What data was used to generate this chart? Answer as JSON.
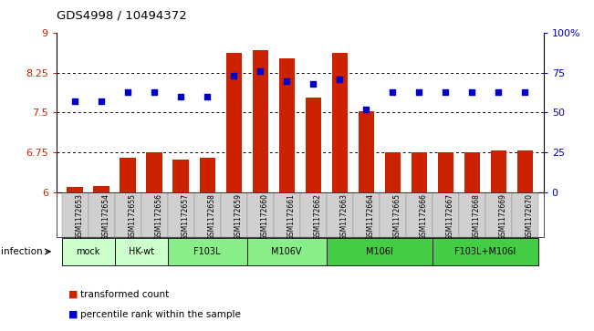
{
  "title": "GDS4998 / 10494372",
  "samples": [
    "GSM1172653",
    "GSM1172654",
    "GSM1172655",
    "GSM1172656",
    "GSM1172657",
    "GSM1172658",
    "GSM1172659",
    "GSM1172660",
    "GSM1172661",
    "GSM1172662",
    "GSM1172663",
    "GSM1172664",
    "GSM1172665",
    "GSM1172666",
    "GSM1172667",
    "GSM1172668",
    "GSM1172669",
    "GSM1172670"
  ],
  "bar_values": [
    6.1,
    6.12,
    6.65,
    6.75,
    6.62,
    6.65,
    8.63,
    8.68,
    8.52,
    7.78,
    8.62,
    7.52,
    6.75,
    6.75,
    6.75,
    6.75,
    6.78,
    6.78
  ],
  "dot_values": [
    57,
    57,
    63,
    63,
    60,
    60,
    73,
    76,
    70,
    68,
    71,
    52,
    63,
    63,
    63,
    63,
    63,
    63
  ],
  "ylim_left": [
    6,
    9
  ],
  "ylim_right": [
    0,
    100
  ],
  "yticks_left": [
    6,
    6.75,
    7.5,
    8.25,
    9
  ],
  "yticks_right": [
    0,
    25,
    50,
    75,
    100
  ],
  "ytick_labels_right": [
    "0",
    "25",
    "50",
    "75",
    "100%"
  ],
  "bar_color": "#cc2200",
  "dot_color": "#0000cc",
  "groups": [
    {
      "label": "mock",
      "start": 0,
      "end": 2,
      "color": "#ccffcc"
    },
    {
      "label": "HK-wt",
      "start": 2,
      "end": 4,
      "color": "#ccffcc"
    },
    {
      "label": "F103L",
      "start": 4,
      "end": 7,
      "color": "#88ee88"
    },
    {
      "label": "M106V",
      "start": 7,
      "end": 10,
      "color": "#88ee88"
    },
    {
      "label": "M106I",
      "start": 10,
      "end": 14,
      "color": "#44cc44"
    },
    {
      "label": "F103L+M106I",
      "start": 14,
      "end": 18,
      "color": "#44cc44"
    }
  ],
  "infection_label": "infection",
  "legend_bar_label": "transformed count",
  "legend_dot_label": "percentile rank within the sample",
  "background_color": "#ffffff"
}
